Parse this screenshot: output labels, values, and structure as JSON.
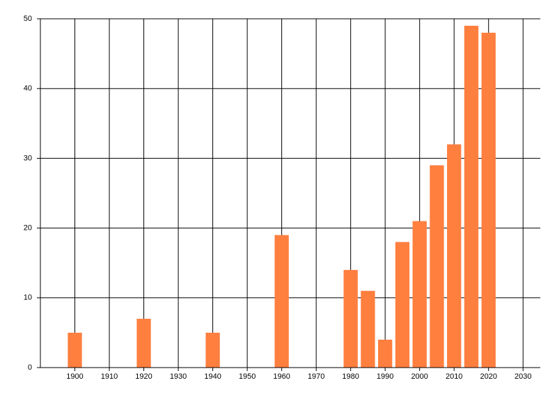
{
  "chart_data": {
    "type": "bar",
    "x": [
      1900,
      1920,
      1940,
      1960,
      1980,
      1985,
      1990,
      1995,
      2000,
      2005,
      2010,
      2015,
      2020
    ],
    "values": [
      5,
      7,
      5,
      19,
      14,
      11,
      4,
      18,
      21,
      29,
      32,
      49,
      48
    ],
    "color": "#ff7f3f",
    "xlim": [
      1890,
      2035
    ],
    "xticks": [
      1900,
      1910,
      1920,
      1930,
      1940,
      1950,
      1960,
      1970,
      1980,
      1990,
      2000,
      2010,
      2020,
      2030
    ],
    "ylim": [
      0,
      50
    ],
    "yticks": [
      0,
      10,
      20,
      30,
      40,
      50
    ],
    "grid": true
  }
}
